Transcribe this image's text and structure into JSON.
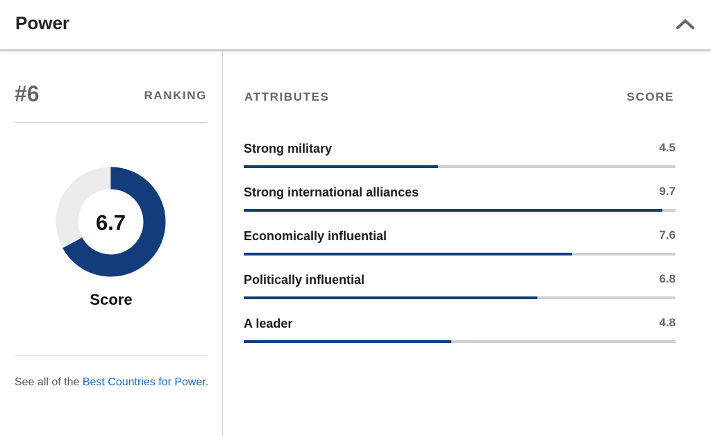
{
  "header": {
    "title": "Power",
    "collapse_icon": "chevron-up-icon"
  },
  "ranking": {
    "rank": "#6",
    "label": "RANKING"
  },
  "score": {
    "value": 6.7,
    "display": "6.7",
    "max": 10,
    "label": "Score",
    "colors": {
      "fill": "#123c7a",
      "track": "#ebebeb"
    }
  },
  "footer": {
    "prefix": "See all of the ",
    "link_text": "Best Countries for Power."
  },
  "attributes": {
    "header_left": "ATTRIBUTES",
    "header_right": "SCORE",
    "max": 10,
    "bar_color": "#123c7a",
    "track_color": "#cfcfcf",
    "items": [
      {
        "label": "Strong military",
        "score": "4.5",
        "value": 4.5
      },
      {
        "label": "Strong international alliances",
        "score": "9.7",
        "value": 9.7
      },
      {
        "label": "Economically influential",
        "score": "7.6",
        "value": 7.6
      },
      {
        "label": "Politically influential",
        "score": "6.8",
        "value": 6.8
      },
      {
        "label": "A leader",
        "score": "4.8",
        "value": 4.8
      }
    ]
  }
}
